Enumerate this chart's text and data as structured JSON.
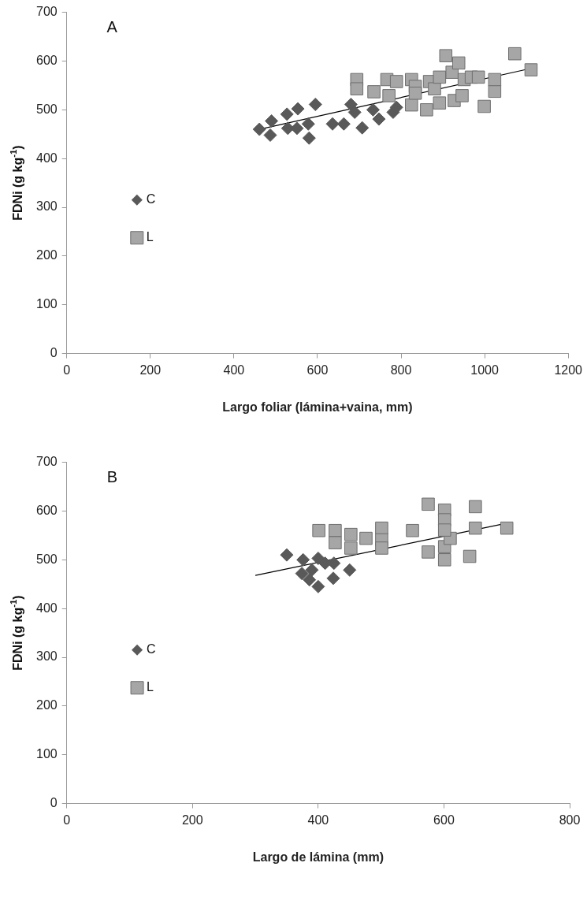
{
  "chart_data": [
    {
      "type": "scatter",
      "title": "A",
      "xlabel": "Largo foliar (lámina+vaina, mm)",
      "ylabel": "FDNi (g kg$^{-1}$)",
      "xlim": [
        0,
        1200
      ],
      "xticks": [
        0,
        200,
        400,
        600,
        800,
        1000,
        1200
      ],
      "ylim": [
        0,
        700
      ],
      "yticks": [
        0,
        100,
        200,
        300,
        400,
        500,
        600,
        700
      ],
      "grid": false,
      "legend": "left",
      "series": [
        {
          "name": "C",
          "color": "#595959",
          "marker": "diamond",
          "x": [
            461,
            490,
            487,
            527,
            529,
            553,
            551,
            578,
            580,
            595,
            636,
            663,
            680,
            689,
            707,
            733,
            747,
            781,
            789
          ],
          "values": [
            460,
            477,
            448,
            491,
            462,
            502,
            462,
            471,
            442,
            511,
            471,
            471,
            511,
            495,
            463,
            500,
            481,
            495,
            505
          ]
        },
        {
          "name": "L",
          "color": "#a6a6a6",
          "marker": "square",
          "x": [
            694,
            694,
            735,
            766,
            771,
            789,
            825,
            825,
            834,
            834,
            861,
            868,
            880,
            892,
            892,
            907,
            922,
            927,
            938,
            946,
            951,
            968,
            985,
            999,
            1024,
            1024,
            1072,
            1111
          ],
          "values": [
            562,
            543,
            537,
            562,
            529,
            558,
            562,
            510,
            548,
            534,
            500,
            558,
            543,
            567,
            514,
            611,
            577,
            519,
            596,
            529,
            562,
            567,
            567,
            507,
            538,
            562,
            615,
            582
          ]
        },
        {
          "type": "line",
          "color": "#000000",
          "marker": "none",
          "x": [
            461,
            1111
          ],
          "values": [
            460,
            585
          ]
        }
      ]
    },
    {
      "type": "scatter",
      "title": "B",
      "xlabel": "Largo de lámina (mm)",
      "ylabel": "FDNi (g kg$^{-1}$)",
      "xlim": [
        0,
        800
      ],
      "xticks": [
        0,
        200,
        400,
        600,
        800
      ],
      "ylim": [
        0,
        700
      ],
      "yticks": [
        0,
        100,
        200,
        300,
        400,
        500,
        600,
        700
      ],
      "grid": false,
      "legend": "left",
      "series": [
        {
          "name": "C",
          "color": "#595959",
          "marker": "diamond",
          "x": [
            350,
            376,
            400,
            411,
            374,
            390,
            386,
            400,
            424,
            450,
            425
          ],
          "values": [
            510,
            500,
            503,
            493,
            472,
            479,
            459,
            445,
            462,
            479,
            493
          ]
        },
        {
          "name": "L",
          "color": "#a6a6a6",
          "marker": "square",
          "x": [
            401,
            427,
            427,
            452,
            452,
            476,
            501,
            501,
            501,
            550,
            575,
            575,
            601,
            601,
            601,
            601,
            610,
            650,
            650,
            641,
            700,
            601
          ],
          "values": [
            560,
            560,
            535,
            552,
            524,
            544,
            565,
            541,
            524,
            560,
            614,
            516,
            602,
            582,
            527,
            500,
            544,
            609,
            565,
            507,
            565,
            561
          ]
        },
        {
          "type": "line",
          "color": "#000000",
          "marker": "none",
          "x": [
            300,
            700
          ],
          "values": [
            468,
            575
          ]
        }
      ]
    }
  ]
}
